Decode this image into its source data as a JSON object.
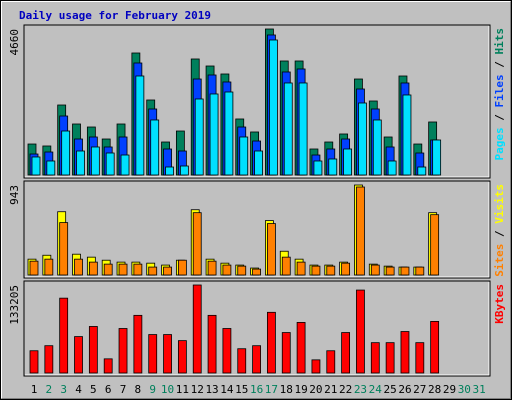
{
  "chart_data": [
    {
      "type": "bar",
      "title": "Daily usage for February 2019",
      "legend_separator": " / ",
      "ylim": [
        0,
        4660
      ],
      "yticks": [
        4660
      ],
      "series": [
        {
          "name": "Hits",
          "color": "#00805c",
          "values": [
            989,
            926,
            2234,
            1628,
            1532,
            1149,
            1628,
            3894,
            2394,
            1053,
            1404,
            3703,
            3479,
            3224,
            1788,
            1373,
            4660,
            3639,
            3639,
            830,
            1053,
            1309,
            3064,
            2362,
            1213,
            3160,
            989,
            1692,
            null,
            null,
            null
          ]
        },
        {
          "name": "Files",
          "color": "#0040ff",
          "values": [
            670,
            734,
            1883,
            1149,
            1213,
            894,
            1213,
            3575,
            2107,
            830,
            766,
            3064,
            3192,
            2969,
            1532,
            1085,
            4469,
            3288,
            3384,
            638,
            830,
            1149,
            2745,
            2107,
            894,
            2937,
            702,
            1117,
            null,
            null,
            null
          ]
        },
        {
          "name": "Pages",
          "color": "#00e0ff",
          "values": [
            575,
            447,
            1404,
            766,
            894,
            702,
            638,
            3160,
            1756,
            255,
            287,
            2426,
            2586,
            2649,
            1213,
            766,
            4309,
            2937,
            2937,
            447,
            511,
            830,
            2298,
            1756,
            447,
            2554,
            255,
            1117,
            null,
            null,
            null
          ]
        }
      ]
    },
    {
      "type": "bar",
      "legend_separator": " / ",
      "ylim": [
        0,
        943
      ],
      "yticks": [
        943
      ],
      "series": [
        {
          "name": "Visits",
          "color": "#ffff00",
          "values": [
            166,
            207,
            663,
            218,
            187,
            155,
            135,
            135,
            124,
            104,
            155,
            684,
            166,
            124,
            104,
            73,
            570,
            249,
            166,
            104,
            104,
            135,
            943,
            114,
            93,
            83,
            83,
            653,
            null,
            null,
            null
          ]
        },
        {
          "name": "Sites",
          "color": "#ff8000",
          "values": [
            145,
            166,
            549,
            166,
            135,
            114,
            114,
            114,
            83,
            83,
            155,
            653,
            145,
            104,
            93,
            62,
            539,
            187,
            135,
            93,
            93,
            124,
            922,
            104,
            83,
            83,
            83,
            632,
            null,
            null,
            null
          ]
        }
      ]
    },
    {
      "type": "bar",
      "ylim": [
        0,
        133205
      ],
      "yticks": [
        133205
      ],
      "categories": [
        "1",
        "2",
        "3",
        "4",
        "5",
        "6",
        "7",
        "8",
        "9",
        "10",
        "11",
        "12",
        "13",
        "14",
        "15",
        "16",
        "17",
        "18",
        "19",
        "20",
        "21",
        "22",
        "23",
        "24",
        "25",
        "26",
        "27",
        "28",
        "29",
        "30",
        "31"
      ],
      "category_colors": [
        "#000000",
        "#00805c",
        "#00805c",
        "#000000",
        "#000000",
        "#000000",
        "#000000",
        "#000000",
        "#00805c",
        "#00805c",
        "#000000",
        "#000000",
        "#000000",
        "#000000",
        "#000000",
        "#00805c",
        "#00805c",
        "#000000",
        "#000000",
        "#000000",
        "#000000",
        "#000000",
        "#00805c",
        "#00805c",
        "#000000",
        "#000000",
        "#000000",
        "#000000",
        "#000000",
        "#00805c",
        "#00805c"
      ],
      "series": [
        {
          "name": "KBytes",
          "color": "#ff0000",
          "values": [
            33682,
            41337,
            113294,
            55116,
            70426,
            21434,
            67364,
            87267,
            58178,
            58178,
            48992,
            133205,
            87267,
            67364,
            36744,
            41337,
            91860,
            61240,
            76550,
            19903,
            33682,
            61240,
            125542,
            45930,
            45930,
            62771,
            45930,
            78081,
            null,
            null,
            null
          ]
        }
      ]
    }
  ]
}
